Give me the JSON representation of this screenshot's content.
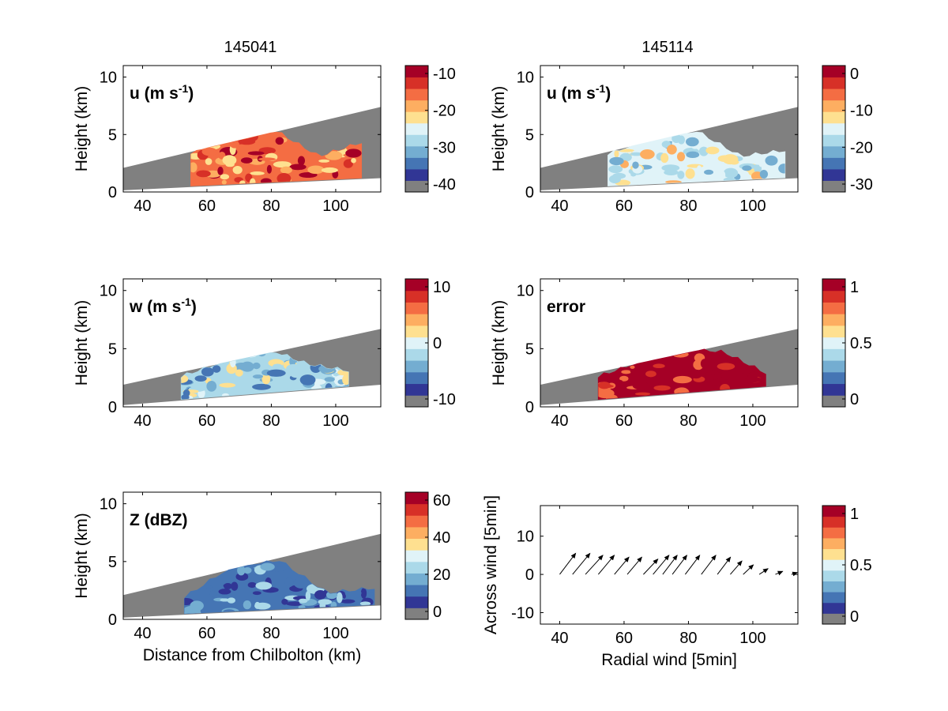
{
  "figure": {
    "titles": [
      "145041",
      "145114"
    ]
  },
  "chart_data": [
    {
      "type": "heatmap",
      "panel": "u-145041",
      "label": "u (m s",
      "label_sup": "-1",
      "label_tail": ")",
      "xlabel": "",
      "ylabel": "Height (km)",
      "xlim": [
        34,
        114
      ],
      "ylim": [
        0,
        11
      ],
      "xticks": [
        40,
        60,
        80,
        100
      ],
      "yticks": [
        0,
        5,
        10
      ],
      "colorbar": {
        "ticks": [
          "-10",
          "-20",
          "-30",
          "-40"
        ]
      },
      "swath": {
        "upper": [
          [
            34,
            2.1
          ],
          [
            114,
            7.4
          ]
        ],
        "lower": [
          [
            34,
            0.15
          ],
          [
            114,
            1.2
          ]
        ]
      },
      "echo": {
        "x": [
          55,
          108
        ],
        "top": [
          3.3,
          4.8,
          5.2,
          3.0,
          4.2
        ],
        "dominant": "#f46d43"
      },
      "grid": false
    },
    {
      "type": "heatmap",
      "panel": "u-145114",
      "label": "u (m s",
      "label_sup": "-1",
      "label_tail": ")",
      "xlabel": "",
      "ylabel": "Height (km)",
      "xlim": [
        34,
        114
      ],
      "ylim": [
        0,
        11
      ],
      "xticks": [
        40,
        60,
        80,
        100
      ],
      "yticks": [
        0,
        5,
        10
      ],
      "colorbar": {
        "ticks": [
          "0",
          "-10",
          "-20",
          "-30"
        ]
      },
      "swath": {
        "upper": [
          [
            34,
            2.1
          ],
          [
            114,
            7.4
          ]
        ],
        "lower": [
          [
            34,
            0.15
          ],
          [
            114,
            1.2
          ]
        ]
      },
      "echo": {
        "x": [
          55,
          110
        ],
        "top": [
          3.2,
          4.6,
          5.2,
          3.0,
          3.5
        ],
        "dominant": "#e0f3f8"
      },
      "grid": false
    },
    {
      "type": "heatmap",
      "panel": "w-145041",
      "label": "w (m s",
      "label_sup": "-1",
      "label_tail": ")",
      "xlabel": "",
      "ylabel": "Height (km)",
      "xlim": [
        34,
        114
      ],
      "ylim": [
        0,
        11
      ],
      "xticks": [
        40,
        60,
        80,
        100
      ],
      "yticks": [
        0,
        5,
        10
      ],
      "colorbar": {
        "ticks": [
          "10",
          "0",
          "-10"
        ]
      },
      "swath": {
        "upper": [
          [
            34,
            1.9
          ],
          [
            114,
            6.7
          ]
        ],
        "lower": [
          [
            34,
            0.15
          ],
          [
            114,
            1.9
          ]
        ]
      },
      "echo": {
        "x": [
          52,
          104
        ],
        "top": [
          2.5,
          3.8,
          5.0,
          3.6,
          3.0
        ],
        "dominant": "#abd9e9"
      },
      "grid": false
    },
    {
      "type": "heatmap",
      "panel": "error-145114",
      "label": "error",
      "label_sup": "",
      "label_tail": "",
      "xlabel": "",
      "ylabel": "Height (km)",
      "xlim": [
        34,
        114
      ],
      "ylim": [
        0,
        11
      ],
      "xticks": [
        40,
        60,
        80,
        100
      ],
      "yticks": [
        0,
        5,
        10
      ],
      "colorbar": {
        "ticks": [
          "1",
          "0.5",
          "0"
        ]
      },
      "swath": {
        "upper": [
          [
            34,
            1.9
          ],
          [
            114,
            6.7
          ]
        ],
        "lower": [
          [
            34,
            0.15
          ],
          [
            114,
            1.9
          ]
        ]
      },
      "echo": {
        "x": [
          52,
          104
        ],
        "top": [
          2.5,
          3.8,
          5.0,
          4.6,
          2.8
        ],
        "dominant": "#a50026"
      },
      "grid": false
    },
    {
      "type": "heatmap",
      "panel": "Z-145041",
      "label": "Z (dBZ)",
      "label_sup": "",
      "label_tail": "",
      "xlabel": "Distance from Chilbolton (km)",
      "ylabel": "Height (km)",
      "xlim": [
        34,
        114
      ],
      "ylim": [
        0,
        11
      ],
      "xticks": [
        40,
        60,
        80,
        100
      ],
      "yticks": [
        0,
        5,
        10
      ],
      "colorbar": {
        "ticks": [
          "60",
          "40",
          "20",
          "0"
        ]
      },
      "swath": {
        "upper": [
          [
            34,
            2.1
          ],
          [
            114,
            7.4
          ]
        ],
        "lower": [
          [
            34,
            0.15
          ],
          [
            114,
            1.2
          ]
        ]
      },
      "echo": {
        "x": [
          53,
          112
        ],
        "top": [
          1.8,
          4.5,
          5.0,
          2.2,
          2.6
        ],
        "dominant": "#4575b4"
      },
      "grid": false
    },
    {
      "type": "scatter",
      "panel": "wind-vectors",
      "xlabel": "Radial wind [5min]",
      "ylabel": "Across wind [5min]",
      "xlim": [
        34,
        114
      ],
      "ylim": [
        -13,
        18
      ],
      "xticks": [
        40,
        60,
        80,
        100
      ],
      "yticks": [
        10,
        0,
        -10
      ],
      "colorbar": {
        "ticks": [
          "1",
          "0.5",
          "0"
        ]
      },
      "series": [
        {
          "x": [
            40,
            44,
            48,
            52,
            57,
            61,
            66,
            69,
            72,
            75,
            79,
            84,
            89,
            93,
            97,
            102,
            107,
            112
          ],
          "u": [
            5.5,
            6,
            6,
            5.5,
            5,
            5,
            5,
            5.5,
            5,
            5,
            5,
            5,
            4.5,
            4,
            3.5,
            3,
            2.5,
            2
          ],
          "v": [
            5.5,
            5.5,
            5,
            5,
            4.5,
            4.5,
            4,
            5,
            5,
            5,
            5,
            5,
            4.5,
            3.5,
            2.5,
            1.5,
            0.8,
            0.5
          ]
        }
      ],
      "grid": false
    }
  ],
  "palette": [
    "#808080",
    "#313695",
    "#4575b4",
    "#74add1",
    "#abd9e9",
    "#e0f3f8",
    "#fee090",
    "#fdae61",
    "#f46d43",
    "#d73027",
    "#a50026"
  ]
}
